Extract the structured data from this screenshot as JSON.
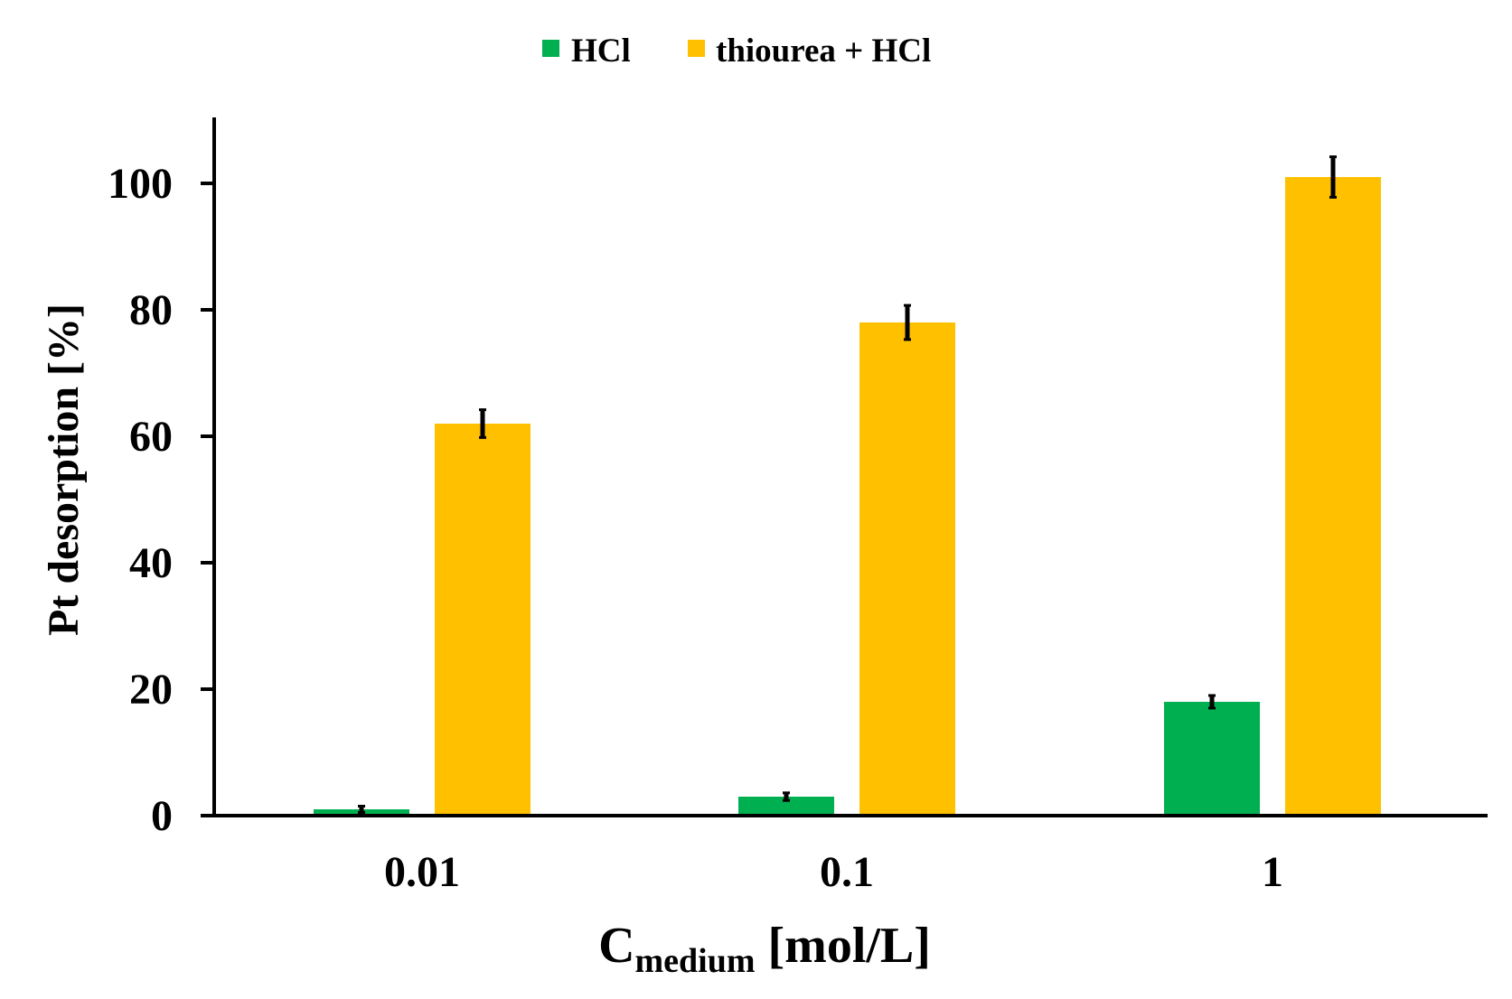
{
  "chart_data": {
    "type": "bar",
    "categories": [
      "0.01",
      "0.1",
      "1"
    ],
    "series": [
      {
        "name": "HCl",
        "color": "#00b050",
        "values": [
          1,
          3,
          18
        ],
        "errors": [
          0.5,
          0.6,
          1.0
        ]
      },
      {
        "name": "thiourea + HCl",
        "color": "#ffc000",
        "values": [
          62,
          78,
          101
        ],
        "errors": [
          2.2,
          2.7,
          3.2
        ]
      }
    ],
    "ylabel": "Pt desorption [%]",
    "xlabel": {
      "main": "C",
      "sub": "medium",
      "unit": " [mol/L]"
    },
    "ylim": [
      0,
      110
    ],
    "yticks": [
      "0",
      "20",
      "40",
      "60",
      "80",
      "100"
    ],
    "grid": false,
    "legend_position": "top-center"
  }
}
